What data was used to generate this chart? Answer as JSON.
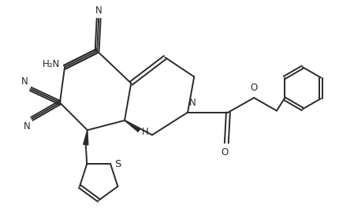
{
  "background_color": "#ffffff",
  "line_color": "#2a2a2a",
  "line_width": 1.4,
  "text_color": "#2a2a2a",
  "font_size": 8.5,
  "figsize": [
    4.31,
    2.73
  ],
  "dpi": 100,
  "xlim": [
    0,
    10.5
  ],
  "ylim": [
    0,
    6.5
  ]
}
